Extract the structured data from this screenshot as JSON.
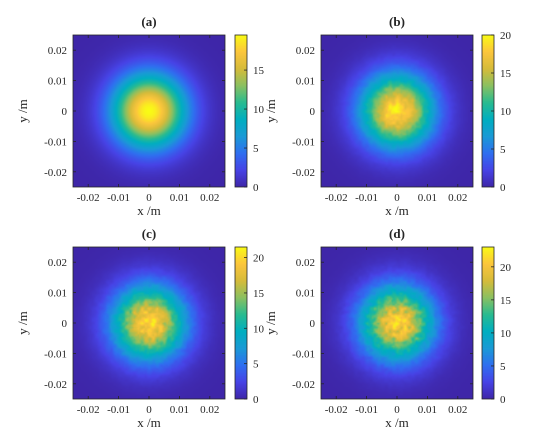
{
  "colormap": {
    "name": "parula",
    "stops": [
      "#3e26a8",
      "#4743e6",
      "#2f6ff0",
      "#1a9ad6",
      "#00aec0",
      "#29bb90",
      "#8bc061",
      "#d6bb3a",
      "#fcc63c",
      "#f9fb15"
    ]
  },
  "chart_data": [
    {
      "type": "heatmap",
      "title": "(a)",
      "xlabel": "x /m",
      "ylabel": "y /m",
      "xlim": [
        -0.025,
        0.025
      ],
      "ylim": [
        -0.025,
        0.025
      ],
      "x_ticks": [
        "-0.02",
        "-0.01",
        "0",
        "0.01",
        "0.02"
      ],
      "y_ticks": [
        "0.02",
        "0.01",
        "0",
        "-0.01",
        "-0.02"
      ],
      "colorbar": {
        "range": [
          0,
          19.5
        ],
        "ticks": [
          "15",
          "10",
          "5",
          "0"
        ]
      },
      "peak": 19.5,
      "center": [
        0,
        0
      ],
      "beam_width_m": 0.0085,
      "speckle": 0
    },
    {
      "type": "heatmap",
      "title": "(b)",
      "xlabel": "x /m",
      "ylabel": "y /m",
      "xlim": [
        -0.025,
        0.025
      ],
      "ylim": [
        -0.025,
        0.025
      ],
      "x_ticks": [
        "-0.02",
        "-0.01",
        "0",
        "0.01",
        "0.02"
      ],
      "y_ticks": [
        "0.02",
        "0.01",
        "0",
        "-0.01",
        "-0.02"
      ],
      "colorbar": {
        "range": [
          0,
          20
        ],
        "ticks": [
          "20",
          "15",
          "10",
          "5",
          "0"
        ]
      },
      "peak": 19,
      "center": [
        0,
        0
      ],
      "beam_width_m": 0.0085,
      "speckle": 0.1
    },
    {
      "type": "heatmap",
      "title": "(c)",
      "xlabel": "x /m",
      "ylabel": "y /m",
      "xlim": [
        -0.025,
        0.025
      ],
      "ylim": [
        -0.025,
        0.025
      ],
      "x_ticks": [
        "-0.02",
        "-0.01",
        "0",
        "0.01",
        "0.02"
      ],
      "y_ticks": [
        "0.02",
        "0.01",
        "0",
        "-0.01",
        "-0.02"
      ],
      "colorbar": {
        "range": [
          0,
          21.5
        ],
        "ticks": [
          "20",
          "15",
          "10",
          "5",
          "0"
        ]
      },
      "peak": 20,
      "center": [
        0,
        0
      ],
      "beam_width_m": 0.0085,
      "speckle": 0.14
    },
    {
      "type": "heatmap",
      "title": "(d)",
      "xlabel": "x /m",
      "ylabel": "y /m",
      "xlim": [
        -0.025,
        0.025
      ],
      "ylim": [
        -0.025,
        0.025
      ],
      "x_ticks": [
        "-0.02",
        "-0.01",
        "0",
        "0.01",
        "0.02"
      ],
      "y_ticks": [
        "0.02",
        "0.01",
        "0",
        "-0.01",
        "-0.02"
      ],
      "colorbar": {
        "range": [
          0,
          23
        ],
        "ticks": [
          "20",
          "15",
          "10",
          "5",
          "0"
        ]
      },
      "peak": 21,
      "center": [
        0,
        0
      ],
      "beam_width_m": 0.0085,
      "speckle": 0.18
    }
  ]
}
